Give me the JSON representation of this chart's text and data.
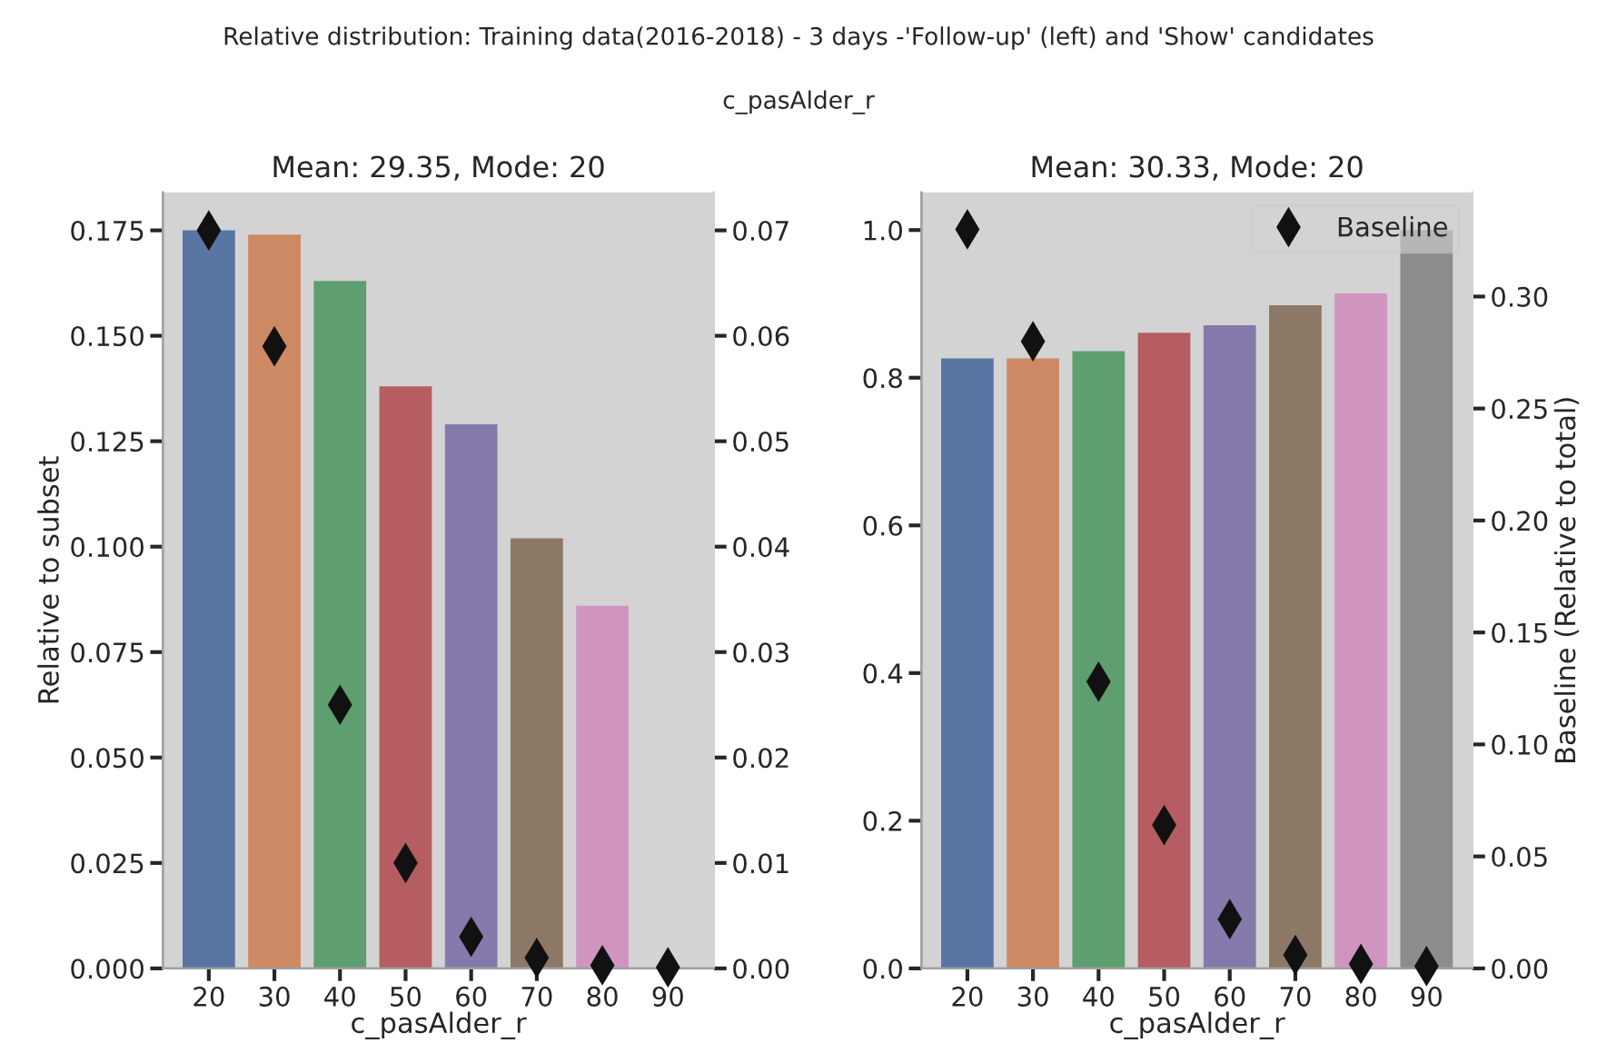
{
  "chart_data": [
    {
      "type": "bar",
      "title": "Mean: 29.35, Mode: 20",
      "xlabel": "c_pasAlder_r",
      "ylabel": "Relative to subset",
      "annotations": [
        "Relative distribution: Training data(2016-2018) - 3 days -'Follow-up' (left) and 'Show' candidates",
        "c_pasAlder_r"
      ],
      "categories": [
        "20",
        "30",
        "40",
        "50",
        "60",
        "70",
        "80",
        "90"
      ],
      "series": [
        {
          "colors": [
            "#5975a4",
            "#cc8963",
            "#5f9e6e",
            "#b55d60",
            "#857aab",
            "#8d7866",
            "#d095bf",
            "#8c8c8c"
          ],
          "values": [
            0.175,
            0.174,
            0.163,
            0.138,
            0.129,
            0.102,
            0.086,
            0
          ]
        },
        {
          "type": "scatter",
          "axis": "y2",
          "color": "#111111",
          "marker": "diamond",
          "values": [
            0.07,
            0.059,
            0.025,
            0.01,
            0.003,
            0.001,
            0.0003,
            0.0001
          ]
        }
      ],
      "ylim": [
        0,
        0.184
      ],
      "yticks": [
        {
          "value": 0,
          "label": "0.000"
        },
        {
          "value": 0.025,
          "label": "0.025"
        },
        {
          "value": 0.05,
          "label": "0.050"
        },
        {
          "value": 0.075,
          "label": "0.075"
        },
        {
          "value": 0.1,
          "label": "0.100"
        },
        {
          "value": 0.125,
          "label": "0.125"
        },
        {
          "value": 0.15,
          "label": "0.150"
        },
        {
          "value": 0.175,
          "label": "0.175"
        }
      ],
      "y2lim": [
        0,
        0.0736
      ],
      "y2ticks": [
        {
          "value": 0,
          "label": "0.00"
        },
        {
          "value": 0.01,
          "label": "0.01"
        },
        {
          "value": 0.02,
          "label": "0.02"
        },
        {
          "value": 0.03,
          "label": "0.03"
        },
        {
          "value": 0.04,
          "label": "0.04"
        },
        {
          "value": 0.05,
          "label": "0.05"
        },
        {
          "value": 0.06,
          "label": "0.06"
        },
        {
          "value": 0.07,
          "label": "0.07"
        }
      ],
      "grid": false,
      "legend": false
    },
    {
      "type": "bar",
      "title": "Mean: 30.33, Mode: 20",
      "xlabel": "c_pasAlder_r",
      "y2label": "Baseline (Relative to total)",
      "categories": [
        "20",
        "30",
        "40",
        "50",
        "60",
        "70",
        "80",
        "90"
      ],
      "series": [
        {
          "colors": [
            "#5975a4",
            "#cc8963",
            "#5f9e6e",
            "#b55d60",
            "#857aab",
            "#8d7866",
            "#d095bf",
            "#8c8c8c"
          ],
          "values": [
            0.826,
            0.826,
            0.836,
            0.861,
            0.871,
            0.898,
            0.914,
            1.0
          ]
        },
        {
          "type": "scatter",
          "axis": "y2",
          "name": "Baseline",
          "color": "#111111",
          "marker": "diamond",
          "values": [
            0.33,
            0.28,
            0.128,
            0.064,
            0.022,
            0.006,
            0.002,
            0.001
          ]
        }
      ],
      "ylim": [
        0,
        1.051
      ],
      "yticks": [
        {
          "value": 0,
          "label": "0.0"
        },
        {
          "value": 0.2,
          "label": "0.2"
        },
        {
          "value": 0.4,
          "label": "0.4"
        },
        {
          "value": 0.6,
          "label": "0.6"
        },
        {
          "value": 0.8,
          "label": "0.8"
        },
        {
          "value": 1.0,
          "label": "1.0"
        }
      ],
      "y2lim": [
        0,
        0.3465
      ],
      "y2ticks": [
        {
          "value": 0,
          "label": "0.00"
        },
        {
          "value": 0.05,
          "label": "0.05"
        },
        {
          "value": 0.1,
          "label": "0.10"
        },
        {
          "value": 0.15,
          "label": "0.15"
        },
        {
          "value": 0.2,
          "label": "0.20"
        },
        {
          "value": 0.25,
          "label": "0.25"
        },
        {
          "value": 0.3,
          "label": "0.30"
        }
      ],
      "grid": false,
      "legend": "top right"
    }
  ]
}
